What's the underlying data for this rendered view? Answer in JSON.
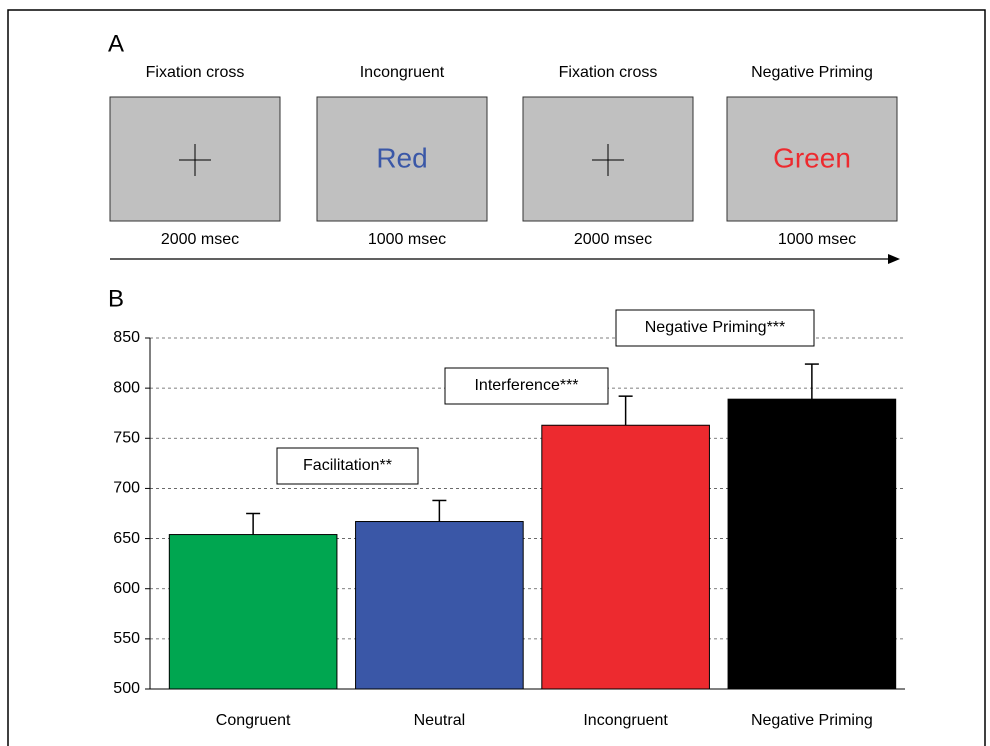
{
  "panel_a": {
    "label": "A",
    "frames": [
      {
        "title": "Fixation cross",
        "duration": "2000 msec"
      },
      {
        "title": "Incongruent",
        "word": "Red",
        "color": "#3a57a7",
        "duration": "1000 msec"
      },
      {
        "title": "Fixation cross",
        "duration": "2000 msec"
      },
      {
        "title": "Negative Priming",
        "word": "Green",
        "color": "#ed2a2f",
        "duration": "1000 msec"
      }
    ]
  },
  "chart_data": {
    "type": "bar",
    "label": "B",
    "categories": [
      "Congruent",
      "Neutral",
      "Incongruent",
      "Negative Priming"
    ],
    "values": [
      654,
      667,
      763,
      789
    ],
    "errors": [
      21,
      21,
      29,
      35
    ],
    "colors": [
      "#00a650",
      "#3a57a7",
      "#ed2a2f",
      "#000000"
    ],
    "ylim": [
      500,
      850
    ],
    "yticks": [
      500,
      550,
      600,
      650,
      700,
      750,
      800,
      850
    ],
    "grid": true,
    "annotations": [
      "Facilitation**",
      "Interference***",
      "Negative Priming***"
    ]
  }
}
